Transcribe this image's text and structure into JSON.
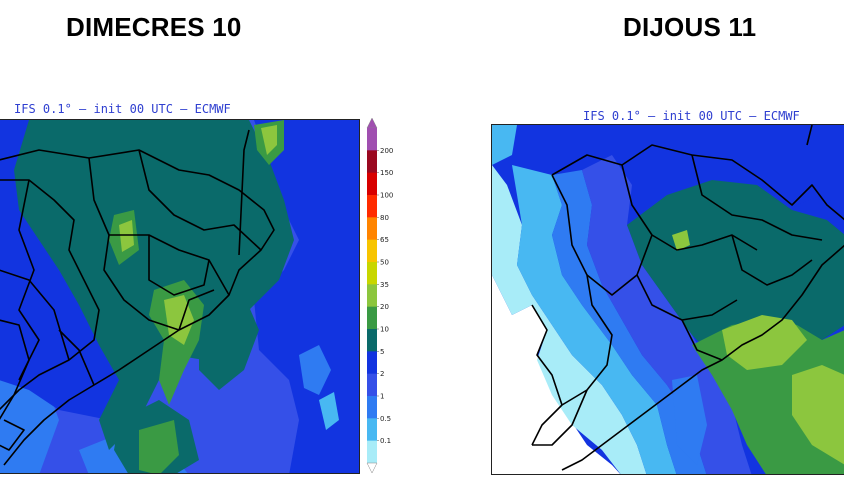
{
  "titles": {
    "left": "DIMECRES 10",
    "right": "DIJOUS 11"
  },
  "maps": {
    "left": {
      "caption": "IFS 0.1° – init 00 UTC – ECMWF"
    },
    "right": {
      "caption": "IFS 0.1° – init 00 UTC – ECMWF"
    }
  },
  "legend": {
    "levels": [
      "200",
      "150",
      "100",
      "80",
      "65",
      "50",
      "35",
      "20",
      "10",
      "5",
      "2",
      "1",
      "0.5",
      "0.1"
    ],
    "colors": {
      "above": "#a04fb0",
      "200": "#9a0820",
      "150": "#d80000",
      "100": "#ff2b00",
      "80": "#ff8400",
      "65": "#f7c400",
      "50": "#c8d600",
      "35": "#8cc63e",
      "20": "#3a9a44",
      "10": "#0a6a6a",
      "5": "#1234e0",
      "2": "#3550e8",
      "1": "#2f7bf2",
      "0.5": "#48b8f2",
      "0.1": "#a8ecf8",
      "below": "#ffffff"
    }
  },
  "palette": {
    "light_cyan": "#a8ecf8",
    "cyan": "#48b8f2",
    "light_blue": "#2f7bf2",
    "blue": "#3550e8",
    "royal_blue": "#1234e0",
    "teal": "#0a6a6a",
    "green": "#3a9a44",
    "light_green": "#8cc63e",
    "border_line": "#000000"
  }
}
